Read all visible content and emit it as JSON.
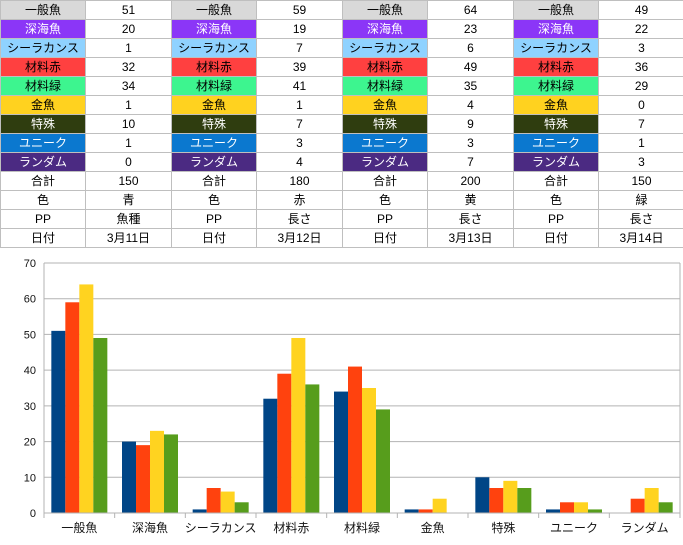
{
  "sheet": {
    "rows": [
      {
        "color": "#d9d9d9",
        "text_color": "#000000",
        "labels": [
          "一般魚",
          "一般魚",
          "一般魚",
          "一般魚"
        ],
        "values": [
          "51",
          "59",
          "64",
          "49"
        ]
      },
      {
        "color": "#8b36f7",
        "text_color": "#ffffff",
        "labels": [
          "深海魚",
          "深海魚",
          "深海魚",
          "深海魚"
        ],
        "values": [
          "20",
          "19",
          "23",
          "22"
        ]
      },
      {
        "color": "#8fd2ff",
        "text_color": "#000000",
        "labels": [
          "シーラカンス",
          "シーラカンス",
          "シーラカンス",
          "シーラカンス"
        ],
        "values": [
          "1",
          "7",
          "6",
          "3"
        ]
      },
      {
        "color": "#ff4040",
        "text_color": "#000000",
        "labels": [
          "材料赤",
          "材料赤",
          "材料赤",
          "材料赤"
        ],
        "values": [
          "32",
          "39",
          "49",
          "36"
        ]
      },
      {
        "color": "#3df58f",
        "text_color": "#000000",
        "labels": [
          "材料緑",
          "材料緑",
          "材料緑",
          "材料緑"
        ],
        "values": [
          "34",
          "41",
          "35",
          "29"
        ]
      },
      {
        "color": "#ffd21f",
        "text_color": "#000000",
        "labels": [
          "金魚",
          "金魚",
          "金魚",
          "金魚"
        ],
        "values": [
          "1",
          "1",
          "4",
          "0"
        ]
      },
      {
        "color": "#2f3d0f",
        "text_color": "#ffffff",
        "labels": [
          "特殊",
          "特殊",
          "特殊",
          "特殊"
        ],
        "values": [
          "10",
          "7",
          "9",
          "7"
        ]
      },
      {
        "color": "#0b78cf",
        "text_color": "#ffffff",
        "labels": [
          "ユニーク",
          "ユニーク",
          "ユニーク",
          "ユニーク"
        ],
        "values": [
          "1",
          "3",
          "3",
          "1"
        ]
      },
      {
        "color": "#4b2a82",
        "text_color": "#ffffff",
        "labels": [
          "ランダム",
          "ランダム",
          "ランダム",
          "ランダム"
        ],
        "values": [
          "0",
          "4",
          "7",
          "3"
        ]
      },
      {
        "color": "#ffffff",
        "text_color": "#000000",
        "labels": [
          "合計",
          "合計",
          "合計",
          "合計"
        ],
        "values": [
          "150",
          "180",
          "200",
          "150"
        ]
      },
      {
        "color": "#ffffff",
        "text_color": "#000000",
        "labels": [
          "色",
          "色",
          "色",
          "色"
        ],
        "values": [
          "青",
          "赤",
          "黄",
          "緑"
        ]
      },
      {
        "color": "#ffffff",
        "text_color": "#000000",
        "labels": [
          "PP",
          "PP",
          "PP",
          "PP"
        ],
        "values": [
          "魚種",
          "長さ",
          "長さ",
          "長さ"
        ]
      },
      {
        "color": "#ffffff",
        "text_color": "#000000",
        "labels": [
          "日付",
          "日付",
          "日付",
          "日付"
        ],
        "values": [
          "3月11日",
          "3月12日",
          "3月13日",
          "3月14日"
        ]
      }
    ]
  },
  "chart_data": {
    "type": "bar",
    "categories": [
      "一般魚",
      "深海魚",
      "シーラカンス",
      "材料赤",
      "材料緑",
      "金魚",
      "特殊",
      "ユニーク",
      "ランダム"
    ],
    "series": [
      {
        "color": "#004586",
        "values": [
          51,
          20,
          1,
          32,
          34,
          1,
          10,
          1,
          0
        ]
      },
      {
        "color": "#ff420e",
        "values": [
          59,
          19,
          7,
          39,
          41,
          1,
          7,
          3,
          4
        ]
      },
      {
        "color": "#ffd320",
        "values": [
          64,
          23,
          6,
          49,
          35,
          4,
          9,
          3,
          7
        ]
      },
      {
        "color": "#579d1c",
        "values": [
          49,
          22,
          3,
          36,
          29,
          0,
          7,
          1,
          3
        ]
      }
    ],
    "y_ticks": [
      "0",
      "10",
      "20",
      "30",
      "40",
      "50",
      "60",
      "70"
    ],
    "ylim": [
      0,
      70
    ],
    "grid": true,
    "legend": "none"
  }
}
